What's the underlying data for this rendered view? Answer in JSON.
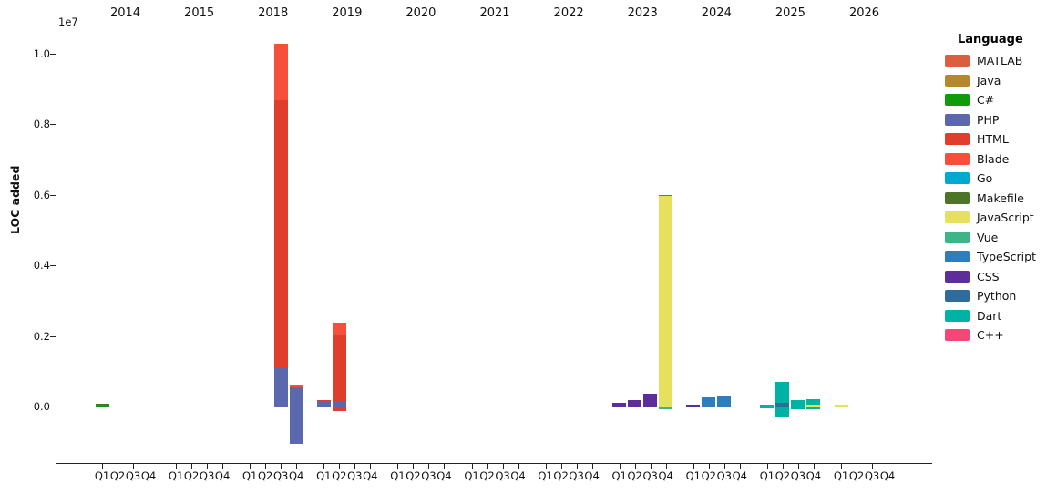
{
  "chart_data": {
    "type": "bar",
    "stacked": true,
    "ylabel": "LOC added",
    "y_offset_label": "1e7",
    "y_ticks": [
      "0.0",
      "0.2",
      "0.4",
      "0.6",
      "0.8",
      "1.0"
    ],
    "y_tick_values_e7": [
      0.0,
      0.2,
      0.4,
      0.6,
      0.8,
      1.0
    ],
    "ylim_loc": [
      -1600000,
      10700000
    ],
    "grid": "off",
    "legend_position": "right",
    "years": [
      "2014",
      "2015",
      "2018",
      "2019",
      "2020",
      "2021",
      "2022",
      "2023",
      "2024",
      "2025",
      "2026"
    ],
    "quarters": [
      "Q1",
      "Q2",
      "Q3",
      "Q4"
    ],
    "legend": {
      "title": "Language",
      "entries": [
        {
          "name": "MATLAB",
          "color": "#DB5F3E"
        },
        {
          "name": "Java",
          "color": "#B5892B"
        },
        {
          "name": "C#",
          "color": "#109B0B"
        },
        {
          "name": "PHP",
          "color": "#5B68AE"
        },
        {
          "name": "HTML",
          "color": "#DF3E2D"
        },
        {
          "name": "Blade",
          "color": "#F4503A"
        },
        {
          "name": "Go",
          "color": "#00A9CE"
        },
        {
          "name": "Makefile",
          "color": "#4D7527"
        },
        {
          "name": "JavaScript",
          "color": "#E7E05C"
        },
        {
          "name": "Vue",
          "color": "#3EB489"
        },
        {
          "name": "TypeScript",
          "color": "#2E7EBE"
        },
        {
          "name": "CSS",
          "color": "#5C2D9B"
        },
        {
          "name": "Python",
          "color": "#306C9B"
        },
        {
          "name": "Dart",
          "color": "#00B2A3"
        },
        {
          "name": "C++",
          "color": "#F34778"
        }
      ]
    },
    "bars": [
      {
        "year": "2014",
        "quarter": "Q1",
        "segments": [
          {
            "language": "MATLAB",
            "value": 5000
          },
          {
            "language": "Java",
            "value": 5000
          },
          {
            "language": "C#",
            "value": 60000
          },
          {
            "language": "Makefile",
            "value": 20000
          }
        ]
      },
      {
        "year": "2018",
        "quarter": "Q3",
        "segments": [
          {
            "language": "PHP",
            "value": 1080000
          },
          {
            "language": "HTML",
            "value": 7590000
          },
          {
            "language": "Blade",
            "value": 1600000
          }
        ]
      },
      {
        "year": "2018",
        "quarter": "Q4",
        "segments": [
          {
            "language": "PHP",
            "value": 550000
          },
          {
            "language": "Blade",
            "value": 60000
          },
          {
            "language": "PHP",
            "value": -1060000
          }
        ]
      },
      {
        "year": "2019",
        "quarter": "Q1",
        "segments": [
          {
            "language": "PHP",
            "value": 150000
          },
          {
            "language": "HTML",
            "value": 40000
          }
        ]
      },
      {
        "year": "2019",
        "quarter": "Q2",
        "segments": [
          {
            "language": "PHP",
            "value": 150000
          },
          {
            "language": "HTML",
            "value": 1870000
          },
          {
            "language": "Blade",
            "value": 360000
          },
          {
            "language": "HTML",
            "value": -130000
          }
        ]
      },
      {
        "year": "2023",
        "quarter": "Q1",
        "segments": [
          {
            "language": "CSS",
            "value": 100000
          }
        ]
      },
      {
        "year": "2023",
        "quarter": "Q2",
        "segments": [
          {
            "language": "CSS",
            "value": 190000
          }
        ]
      },
      {
        "year": "2023",
        "quarter": "Q3",
        "segments": [
          {
            "language": "CSS",
            "value": 360000
          }
        ]
      },
      {
        "year": "2023",
        "quarter": "Q4",
        "segments": [
          {
            "language": "JavaScript",
            "value": 5950000
          },
          {
            "language": "TypeScript",
            "value": 50000
          },
          {
            "language": "Vue",
            "value": -80000
          }
        ]
      },
      {
        "year": "2024",
        "quarter": "Q1",
        "segments": [
          {
            "language": "CSS",
            "value": 50000
          }
        ]
      },
      {
        "year": "2024",
        "quarter": "Q2",
        "segments": [
          {
            "language": "TypeScript",
            "value": 250000
          }
        ]
      },
      {
        "year": "2024",
        "quarter": "Q3",
        "segments": [
          {
            "language": "TypeScript",
            "value": 320000
          }
        ]
      },
      {
        "year": "2025",
        "quarter": "Q1",
        "segments": [
          {
            "language": "Dart",
            "value": 50000
          },
          {
            "language": "Go",
            "value": -40000
          }
        ]
      },
      {
        "year": "2025",
        "quarter": "Q2",
        "segments": [
          {
            "language": "Python",
            "value": 100000
          },
          {
            "language": "Dart",
            "value": 600000
          },
          {
            "language": "Dart",
            "value": -310000
          }
        ]
      },
      {
        "year": "2025",
        "quarter": "Q3",
        "segments": [
          {
            "language": "Dart",
            "value": 180000
          },
          {
            "language": "Dart",
            "value": -80000
          }
        ]
      },
      {
        "year": "2025",
        "quarter": "Q4",
        "segments": [
          {
            "language": "JavaScript",
            "value": 40000
          },
          {
            "language": "Dart",
            "value": 170000
          },
          {
            "language": "Dart",
            "value": -80000
          }
        ]
      },
      {
        "year": "2026",
        "quarter": "Q1",
        "segments": [
          {
            "language": "JavaScript",
            "value": 40000
          }
        ]
      }
    ]
  }
}
